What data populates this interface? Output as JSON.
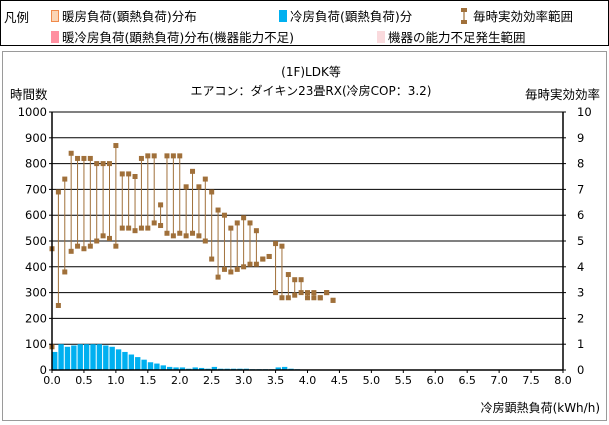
{
  "legend": {
    "title": "凡例",
    "items": [
      {
        "label": "暖房負荷(顕熱負荷)分布",
        "color": "#fbd4b4",
        "icon": "heating-swatch"
      },
      {
        "label": "冷房負荷(顕熱負荷)分",
        "color": "#00b0f0",
        "icon": "cooling-swatch"
      },
      {
        "label": "毎時実効効率範囲",
        "color": "#a0703a",
        "icon": "efficiency-range-icon"
      },
      {
        "label": "暖冷房負荷(顕熱負荷)分布(機器能力不足)",
        "color": "#ff8fa0",
        "icon": "shortage-swatch"
      },
      {
        "label": "機器の能力不足発生範囲",
        "color": "#fadadd",
        "icon": "shortage-range-swatch"
      }
    ]
  },
  "chart_data": {
    "type": "bar",
    "title": "(1F)LDK等",
    "subtitle": "エアコン：ダイキン23畳RX(冷房COP：3.2)",
    "ylabel": "時間数",
    "y2label": "毎時実効効率",
    "xlabel": "冷房顕熱負荷(kWh/h)",
    "ylim": [
      0,
      1000
    ],
    "y2lim": [
      0,
      10
    ],
    "xlim": [
      0,
      8
    ],
    "yticks": [
      "0",
      "100",
      "200",
      "300",
      "400",
      "500",
      "600",
      "700",
      "800",
      "900",
      "1000"
    ],
    "y2ticks": [
      "0",
      "1",
      "2",
      "3",
      "4",
      "5",
      "6",
      "7",
      "8",
      "9",
      "10"
    ],
    "xticks": [
      "0.0",
      "0.5",
      "1.0",
      "1.5",
      "2.0",
      "2.5",
      "3.0",
      "3.5",
      "4.0",
      "4.5",
      "5.0",
      "5.5",
      "6.0",
      "6.5",
      "7.0",
      "7.5",
      "8.0"
    ],
    "grid": true,
    "colors": {
      "bar": "#00b0f0",
      "range": "#a0703a",
      "axis": "#000000",
      "grid": "#000000"
    },
    "series": [
      {
        "name": "冷房負荷(顕熱負荷)分",
        "axis": "left",
        "bin_width": 0.1,
        "x": [
          0.0,
          0.1,
          0.2,
          0.3,
          0.4,
          0.5,
          0.6,
          0.7,
          0.8,
          0.9,
          1.0,
          1.1,
          1.2,
          1.3,
          1.4,
          1.5,
          1.6,
          1.7,
          1.8,
          1.9,
          2.0,
          2.1,
          2.2,
          2.3,
          2.4,
          2.5,
          2.6,
          2.7,
          2.8,
          2.9,
          3.0,
          3.1,
          3.2,
          3.3,
          3.4,
          3.5,
          3.6,
          3.7,
          3.8,
          3.9
        ],
        "values": [
          70,
          100,
          90,
          95,
          100,
          100,
          100,
          100,
          95,
          90,
          80,
          70,
          60,
          50,
          40,
          30,
          25,
          18,
          12,
          10,
          10,
          5,
          10,
          8,
          5,
          12,
          5,
          5,
          5,
          5,
          5,
          3,
          3,
          3,
          3,
          10,
          12,
          5,
          3,
          2
        ]
      },
      {
        "name": "毎時実効効率範囲",
        "axis": "right",
        "type": "range",
        "x": [
          0.0,
          0.1,
          0.2,
          0.3,
          0.4,
          0.5,
          0.6,
          0.7,
          0.8,
          0.9,
          1.0,
          1.1,
          1.2,
          1.3,
          1.4,
          1.5,
          1.6,
          1.7,
          1.8,
          1.9,
          2.0,
          2.1,
          2.2,
          2.3,
          2.4,
          2.5,
          2.6,
          2.7,
          2.8,
          2.9,
          3.0,
          3.1,
          3.2,
          3.3,
          3.4,
          3.5,
          3.6,
          3.7,
          3.8,
          3.9,
          4.0,
          4.1,
          4.2,
          4.3,
          4.4
        ],
        "low": [
          0.9,
          2.5,
          3.8,
          4.6,
          4.8,
          4.7,
          4.8,
          5.0,
          5.2,
          5.1,
          4.8,
          5.5,
          5.5,
          5.4,
          5.5,
          5.5,
          5.7,
          5.6,
          5.3,
          5.2,
          5.3,
          5.2,
          5.3,
          5.2,
          5.0,
          4.3,
          3.6,
          3.9,
          3.8,
          3.9,
          4.0,
          4.1,
          4.1,
          4.3,
          4.4,
          3.0,
          2.8,
          2.8,
          2.9,
          3.0,
          2.8,
          2.8,
          2.8,
          3.0,
          2.7
        ],
        "high": [
          4.7,
          6.9,
          7.4,
          8.4,
          8.2,
          8.2,
          8.2,
          8.0,
          8.0,
          8.0,
          8.7,
          7.6,
          7.6,
          7.5,
          8.2,
          8.3,
          8.3,
          6.4,
          8.3,
          8.3,
          8.3,
          7.1,
          7.7,
          7.1,
          7.4,
          6.9,
          6.2,
          6.0,
          5.5,
          5.7,
          5.9,
          5.7,
          5.4,
          4.3,
          4.4,
          4.9,
          4.8,
          3.7,
          3.5,
          3.5,
          3.0,
          3.0,
          2.8,
          3.0,
          2.7
        ]
      }
    ]
  }
}
